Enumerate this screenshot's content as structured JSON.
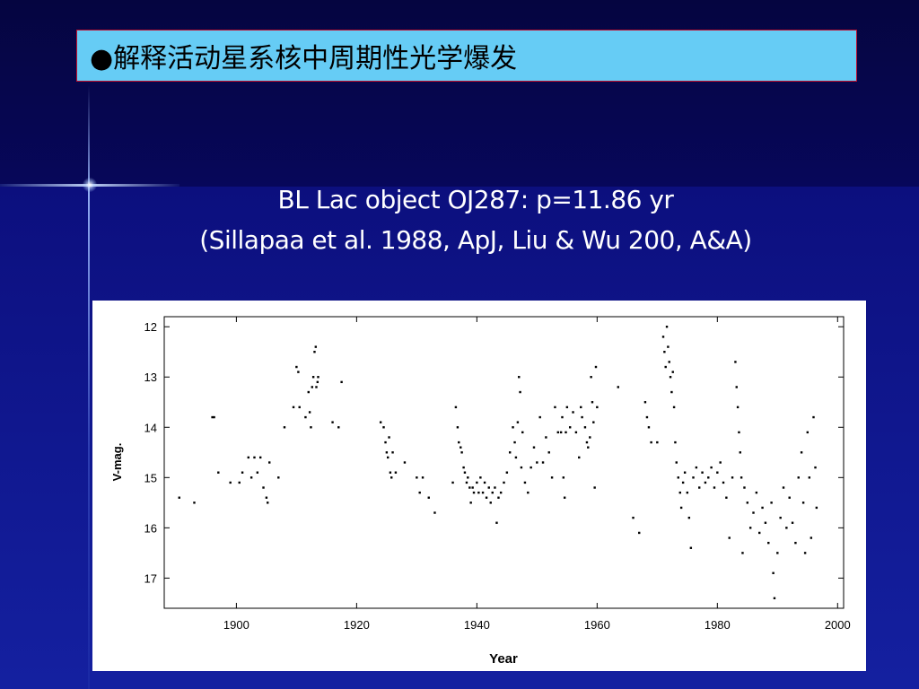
{
  "slide": {
    "title": "●解释活动星系核中周期性光学爆发",
    "subtitle_line1": "BL Lac object OJ287: p=11.86 yr",
    "subtitle_line2": "(Sillapaa et al. 1988, ApJ, Liu & Wu 200, A&A)"
  },
  "colors": {
    "title_box_bg": "#66ccf5",
    "title_box_border": "#c01030",
    "point_color": "#000000"
  },
  "chart_data": {
    "type": "scatter",
    "xlabel": "Year",
    "ylabel": "V-mag.",
    "xlim": [
      1888,
      2001
    ],
    "ylim": [
      17.6,
      11.8
    ],
    "y_inverted": true,
    "xticks": [
      1900,
      1920,
      1940,
      1960,
      1980,
      2000
    ],
    "yticks": [
      12,
      13,
      14,
      15,
      16,
      17
    ],
    "grid": false,
    "series": [
      {
        "points": [
          [
            1890.5,
            15.4
          ],
          [
            1893,
            15.5
          ],
          [
            1896,
            13.8
          ],
          [
            1896.3,
            13.8
          ],
          [
            1897,
            14.9
          ],
          [
            1899,
            15.1
          ],
          [
            1900.5,
            15.1
          ],
          [
            1901,
            14.9
          ],
          [
            1902,
            14.6
          ],
          [
            1902.5,
            15.0
          ],
          [
            1903,
            14.6
          ],
          [
            1903.5,
            14.9
          ],
          [
            1904,
            14.6
          ],
          [
            1904.5,
            15.2
          ],
          [
            1905,
            15.4
          ],
          [
            1905.2,
            15.5
          ],
          [
            1905.5,
            14.7
          ],
          [
            1907,
            15.0
          ],
          [
            1908,
            14.0
          ],
          [
            1909.5,
            13.6
          ],
          [
            1910,
            12.8
          ],
          [
            1910.3,
            12.9
          ],
          [
            1910.5,
            13.6
          ],
          [
            1911.5,
            13.8
          ],
          [
            1912,
            13.3
          ],
          [
            1912.2,
            13.7
          ],
          [
            1912.4,
            14.0
          ],
          [
            1912.6,
            13.2
          ],
          [
            1912.8,
            13.0
          ],
          [
            1913,
            12.5
          ],
          [
            1913.2,
            12.4
          ],
          [
            1913.3,
            13.2
          ],
          [
            1913.5,
            13.1
          ],
          [
            1913.6,
            13.0
          ],
          [
            1916,
            13.9
          ],
          [
            1917,
            14.0
          ],
          [
            1917.5,
            13.1
          ],
          [
            1924,
            13.9
          ],
          [
            1924.5,
            14.0
          ],
          [
            1924.8,
            14.3
          ],
          [
            1925,
            14.5
          ],
          [
            1925.2,
            14.6
          ],
          [
            1925.4,
            14.2
          ],
          [
            1925.6,
            14.9
          ],
          [
            1925.8,
            15.0
          ],
          [
            1926,
            14.5
          ],
          [
            1926.5,
            14.9
          ],
          [
            1928,
            14.7
          ],
          [
            1930,
            15.0
          ],
          [
            1930.5,
            15.3
          ],
          [
            1931,
            15.0
          ],
          [
            1932,
            15.4
          ],
          [
            1933,
            15.7
          ],
          [
            1936,
            15.1
          ],
          [
            1936.5,
            13.6
          ],
          [
            1936.8,
            14.0
          ],
          [
            1937,
            14.3
          ],
          [
            1937.3,
            14.4
          ],
          [
            1937.5,
            14.5
          ],
          [
            1937.8,
            14.8
          ],
          [
            1938,
            14.9
          ],
          [
            1938.3,
            15.1
          ],
          [
            1938.5,
            15.0
          ],
          [
            1938.8,
            15.2
          ],
          [
            1939,
            15.5
          ],
          [
            1939.3,
            15.2
          ],
          [
            1939.5,
            15.3
          ],
          [
            1940,
            15.1
          ],
          [
            1940.3,
            15.3
          ],
          [
            1940.6,
            15.0
          ],
          [
            1941,
            15.3
          ],
          [
            1941.3,
            15.1
          ],
          [
            1941.6,
            15.4
          ],
          [
            1942,
            15.2
          ],
          [
            1942.3,
            15.5
          ],
          [
            1942.6,
            15.3
          ],
          [
            1943,
            15.2
          ],
          [
            1943.3,
            15.9
          ],
          [
            1943.6,
            15.4
          ],
          [
            1944,
            15.3
          ],
          [
            1944.5,
            15.1
          ],
          [
            1945,
            14.9
          ],
          [
            1945.5,
            14.5
          ],
          [
            1946,
            14.0
          ],
          [
            1946.3,
            14.3
          ],
          [
            1946.5,
            14.6
          ],
          [
            1946.8,
            13.9
          ],
          [
            1947,
            13.0
          ],
          [
            1947.2,
            13.3
          ],
          [
            1947.4,
            14.8
          ],
          [
            1947.6,
            14.1
          ],
          [
            1948,
            15.1
          ],
          [
            1948.5,
            15.3
          ],
          [
            1949,
            14.8
          ],
          [
            1949.5,
            14.4
          ],
          [
            1950,
            14.7
          ],
          [
            1950.5,
            13.8
          ],
          [
            1951,
            14.7
          ],
          [
            1951.5,
            14.2
          ],
          [
            1952,
            14.5
          ],
          [
            1952.5,
            15.0
          ],
          [
            1953,
            13.6
          ],
          [
            1953.5,
            14.1
          ],
          [
            1954,
            14.1
          ],
          [
            1954.2,
            13.8
          ],
          [
            1954.4,
            15.0
          ],
          [
            1954.6,
            15.4
          ],
          [
            1954.8,
            14.1
          ],
          [
            1955,
            13.6
          ],
          [
            1955.5,
            14.0
          ],
          [
            1956,
            13.7
          ],
          [
            1956.5,
            14.1
          ],
          [
            1957,
            14.6
          ],
          [
            1957.3,
            13.6
          ],
          [
            1957.5,
            13.8
          ],
          [
            1958,
            14.0
          ],
          [
            1958.3,
            14.3
          ],
          [
            1958.5,
            14.4
          ],
          [
            1958.8,
            14.2
          ],
          [
            1959,
            13.0
          ],
          [
            1959.2,
            13.5
          ],
          [
            1959.4,
            13.9
          ],
          [
            1959.6,
            15.2
          ],
          [
            1959.8,
            12.8
          ],
          [
            1960,
            13.6
          ],
          [
            1963.5,
            13.2
          ],
          [
            1966,
            15.8
          ],
          [
            1967,
            16.1
          ],
          [
            1968,
            13.5
          ],
          [
            1968.3,
            13.8
          ],
          [
            1968.6,
            14.0
          ],
          [
            1969,
            14.3
          ],
          [
            1970,
            14.3
          ],
          [
            1971,
            12.2
          ],
          [
            1971.2,
            12.5
          ],
          [
            1971.4,
            12.8
          ],
          [
            1971.6,
            12.0
          ],
          [
            1971.8,
            12.4
          ],
          [
            1972,
            12.7
          ],
          [
            1972.2,
            13.0
          ],
          [
            1972.4,
            13.3
          ],
          [
            1972.6,
            12.9
          ],
          [
            1972.8,
            13.6
          ],
          [
            1973,
            14.3
          ],
          [
            1973.2,
            14.7
          ],
          [
            1973.5,
            15.0
          ],
          [
            1973.8,
            15.3
          ],
          [
            1974,
            15.6
          ],
          [
            1974.3,
            15.1
          ],
          [
            1974.6,
            14.9
          ],
          [
            1975,
            15.3
          ],
          [
            1975.3,
            15.8
          ],
          [
            1975.6,
            16.4
          ],
          [
            1976,
            15.0
          ],
          [
            1976.5,
            14.8
          ],
          [
            1977,
            15.2
          ],
          [
            1977.5,
            14.9
          ],
          [
            1978,
            15.1
          ],
          [
            1978.5,
            15.0
          ],
          [
            1979,
            14.8
          ],
          [
            1979.5,
            15.2
          ],
          [
            1980,
            14.9
          ],
          [
            1980.5,
            14.7
          ],
          [
            1981,
            15.1
          ],
          [
            1981.5,
            15.4
          ],
          [
            1982,
            16.2
          ],
          [
            1982.5,
            15.0
          ],
          [
            1983,
            12.7
          ],
          [
            1983.2,
            13.2
          ],
          [
            1983.4,
            13.6
          ],
          [
            1983.6,
            14.1
          ],
          [
            1983.8,
            14.5
          ],
          [
            1984,
            15.0
          ],
          [
            1984.2,
            16.5
          ],
          [
            1984.5,
            15.2
          ],
          [
            1985,
            15.5
          ],
          [
            1985.5,
            16.0
          ],
          [
            1986,
            15.7
          ],
          [
            1986.5,
            15.3
          ],
          [
            1987,
            16.1
          ],
          [
            1987.5,
            15.6
          ],
          [
            1988,
            15.9
          ],
          [
            1988.5,
            16.3
          ],
          [
            1989,
            15.5
          ],
          [
            1989.3,
            16.9
          ],
          [
            1989.5,
            17.4
          ],
          [
            1990,
            16.5
          ],
          [
            1990.5,
            15.8
          ],
          [
            1991,
            15.2
          ],
          [
            1991.5,
            16.0
          ],
          [
            1992,
            15.4
          ],
          [
            1992.5,
            15.9
          ],
          [
            1993,
            16.3
          ],
          [
            1993.5,
            15.0
          ],
          [
            1994,
            14.5
          ],
          [
            1994.3,
            15.5
          ],
          [
            1994.6,
            16.5
          ],
          [
            1995,
            14.1
          ],
          [
            1995.3,
            15.0
          ],
          [
            1995.6,
            16.2
          ],
          [
            1996,
            13.8
          ],
          [
            1996.3,
            14.8
          ],
          [
            1996.5,
            15.6
          ]
        ]
      }
    ]
  }
}
